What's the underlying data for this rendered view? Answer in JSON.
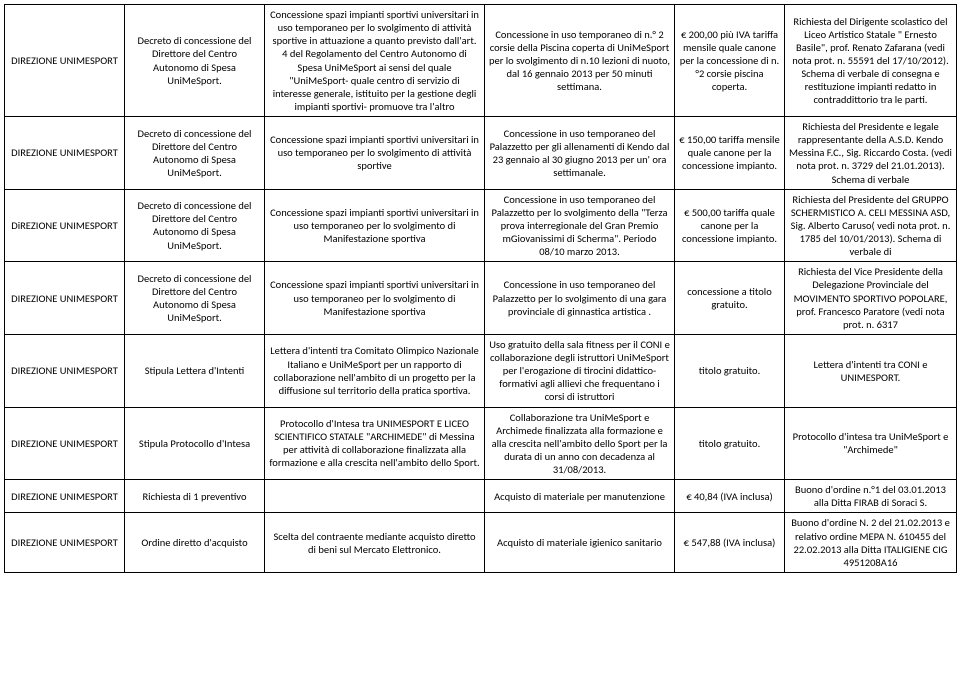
{
  "rows": [
    {
      "c1": "DIREZIONE UNIMESPORT",
      "c2": "Decreto di concessione del Direttore del Centro Autonomo di Spesa UniMeSport.",
      "c3": "Concessione spazi  impianti sportivi universitari in uso temporaneo per lo svolgimento di attività sportive in attuazione a quanto previsto dall'art. 4 del Regolamento del Centro Autonomo di Spesa UniMeSport ai sensi del quale \"UniMeSport- quale centro di servizio di interesse generale, istituito per la gestione degli impianti sportivi- promuove tra l'altro",
      "c4": "Concessione in uso temporaneo di n.° 2 corsie della Piscina coperta di UniMeSport per lo svolgimento di n.10 lezioni di nuoto, dal 16 gennaio 2013 per 50 minuti settimana.",
      "c5": "€ 200,00 più IVA tariffa mensile quale canone per la concessione di n.°2 corsie piscina coperta.",
      "c6": "Richiesta del Dirigente scolastico del Liceo Artistico Statale \" Ernesto Basile\", prof. Renato Zafarana (vedi nota prot. n. 55591 del 17/10/2012). Schema di verbale di consegna e restituzione impianti redatto in contraddittorio tra le parti."
    },
    {
      "c1": "DIREZIONE UNIMESPORT",
      "c2": "Decreto di concessione del Direttore del Centro Autonomo di Spesa UniMeSport.",
      "c3": "Concessione spazi  impianti sportivi universitari in uso temporaneo per lo svolgimento di attività sportive",
      "c4": "Concessione in uso temporaneo del Palazzetto per gli allenamenti di Kendo dal 23 gennaio al 30 giugno 2013 per un' ora settimanale.",
      "c5": "€ 150,00 tariffa mensile quale canone per la concessione impianto.",
      "c6": "Richiesta del Presidente e legale rappresentante della A.S.D. Kendo Messina F.C., Sig. Riccardo Costa. (vedi nota prot. n. 3729 del 21.01.2013). Schema di verbale"
    },
    {
      "c1": "DiREZIONE UNIMESPORT",
      "c2": "Decreto di concessione del Direttore del Centro Autonomo di Spesa UniMeSport.",
      "c3": "Concessione spazi  impianti sportivi universitari in uso temporaneo per lo svolgimento di Manifestazione sportiva",
      "c4": "Concessione in uso temporaneo del Palazzetto per lo svolgimento della \"Terza prova interregionale del Gran Premio mGiovanissimi di Scherma\". Periodo 08/10 marzo 2013.",
      "c5": "€ 500,00 tariffa quale canone per la concessione impianto.",
      "c6": "Richiesta del Presidente del GRUPPO SCHERMISTICO A. CELI MESSINA ASD, Sig. Alberto Caruso( vedi nota prot. n. 1785 del 10/01/2013). Schema di verbale di"
    },
    {
      "c1": "DIREZIONE UNIMESPORT",
      "c2": "Decreto di concessione del Direttore del Centro Autonomo di Spesa UniMeSport.",
      "c3": "Concessione spazi  impianti sportivi universitari in uso temporaneo per lo svolgimento di Manifestazione sportiva",
      "c4": "Concessione in uso temporaneo del Palazzetto per lo svolgimento di una gara provinciale di ginnastica artistica .",
      "c5": "concessione a titolo gratuito.",
      "c6": "Richiesta del Vice Presidente della Delegazione Provinciale del MOVIMENTO SPORTIVO POPOLARE, prof. Francesco Paratore (vedi nota prot. n. 6317"
    },
    {
      "c1": "DIREZIONE UNIMESPORT",
      "c2": "Stipula Lettera d'Intenti",
      "c3": "Lettera d'intenti tra Comitato Olimpico Nazionale Italiano e UniMeSport per un rapporto di collaborazione nell'ambito di un progetto per la diffusione sul territorio della pratica sportiva.",
      "c4": "Uso gratuito della sala fitness per il CONI e collaborazione degli istruttori UniMeSport per l'erogazione di tirocini didattico-formativi agli allievi che frequentano i corsi di istruttori",
      "c5": "titolo gratuito.",
      "c6": "Lettera d'intenti tra CONI e UNIMESPORT."
    },
    {
      "c1": "DIREZIONE UNIMESPORT",
      "c2": "Stipula Protocollo d'Intesa",
      "c3": "Protocollo d'Intesa tra UNIMESPORT E LICEO SCIENTIFICO STATALE \"ARCHIMEDE\" di Messina per attività di collaborazione finalizzata alla formazione e alla crescita nell'ambito dello Sport.",
      "c4": "Collaborazione tra UniMeSport e Archimede finalizzata alla formazione e alla crescita nell'ambito dello Sport per la durata di un anno con decadenza al 31/08/2013.",
      "c5": "titolo gratuito.",
      "c6": "Protocollo d'intesa tra UniMeSport e \"Archimede\""
    },
    {
      "c1": "DIREZIONE UNIMESPORT",
      "c2": "Richiesta di 1 preventivo",
      "c3": "",
      "c4": "Acquisto di materiale per manutenzione",
      "c5": "€ 40,84 (IVA inclusa)",
      "c6": "Buono d'ordine n.°1 del 03.01.2013 alla Ditta FIRAB di Soraci S."
    },
    {
      "c1": "DIREZIONE UNIMESPORT",
      "c2": "Ordine diretto d'acquisto",
      "c3": "Scelta del contraente mediante acquisto diretto di beni sul Mercato Elettronico.",
      "c4": "Acquisto di materiale igienico sanitario",
      "c5": "€ 547,88 (IVA inclusa)",
      "c6": "Buono d'ordine N. 2 del 21.02.2013 e relativo ordine MEPA N. 610455 del 22.02.2013 alla Ditta ITALIGIENE  CIG 4951208A16"
    }
  ]
}
